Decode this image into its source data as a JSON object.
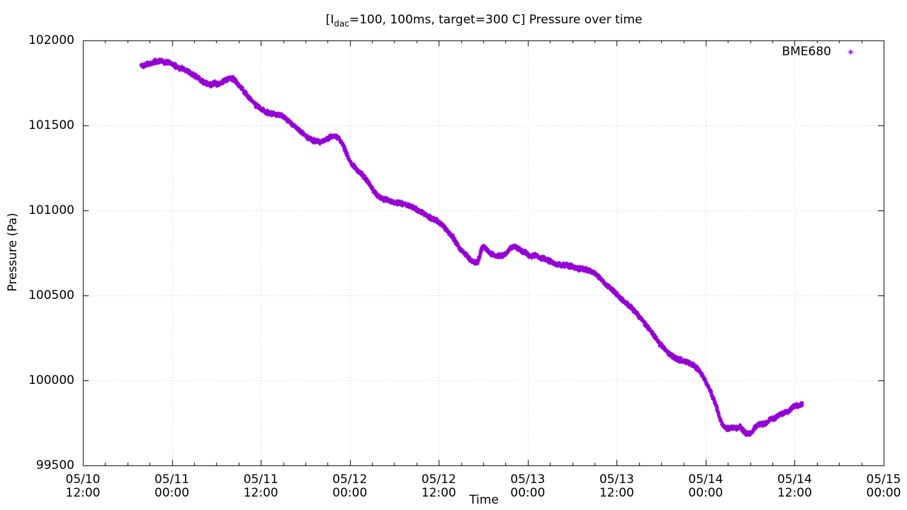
{
  "chart_data": {
    "type": "scatter",
    "title": "[I_dac=100, 100ms, target=300 C] Pressure over time",
    "title_rich": {
      "pre": "[I",
      "sub": "dac",
      "post": "=100, 100ms, target=300 C] Pressure over time"
    },
    "xlabel": "Time",
    "ylabel": "Pressure (Pa)",
    "legend": {
      "position": "top-right",
      "entries": [
        {
          "label": "BME680",
          "color": "#9400d3",
          "marker": "asterisk"
        }
      ]
    },
    "x_axis": {
      "start": "05/10 12:00",
      "end": "05/15 00:00",
      "major_tick_hours": 12,
      "minor_tick_hours": 3,
      "ticks": [
        {
          "line1": "05/10",
          "line2": "12:00"
        },
        {
          "line1": "05/11",
          "line2": "00:00"
        },
        {
          "line1": "05/11",
          "line2": "12:00"
        },
        {
          "line1": "05/12",
          "line2": "00:00"
        },
        {
          "line1": "05/12",
          "line2": "12:00"
        },
        {
          "line1": "05/13",
          "line2": "00:00"
        },
        {
          "line1": "05/13",
          "line2": "12:00"
        },
        {
          "line1": "05/14",
          "line2": "00:00"
        },
        {
          "line1": "05/14",
          "line2": "12:00"
        },
        {
          "line1": "05/15",
          "line2": "00:00"
        }
      ]
    },
    "y_axis": {
      "min": 99500,
      "max": 102000,
      "tick_step": 500,
      "ticks": [
        "99500",
        "100000",
        "100500",
        "101000",
        "101500",
        "102000"
      ]
    },
    "grid": true,
    "series": [
      {
        "name": "BME680",
        "color": "#9400d3",
        "marker": "asterisk",
        "keypoints_hours_pa": [
          [
            7.8,
            101853
          ],
          [
            8.2,
            101858
          ],
          [
            8.7,
            101862
          ],
          [
            9.2,
            101868
          ],
          [
            9.7,
            101878
          ],
          [
            10.2,
            101882
          ],
          [
            10.7,
            101878
          ],
          [
            11.1,
            101872
          ],
          [
            11.5,
            101876
          ],
          [
            12.0,
            101862
          ],
          [
            12.6,
            101845
          ],
          [
            13.2,
            101836
          ],
          [
            13.8,
            101828
          ],
          [
            14.4,
            101812
          ],
          [
            15.0,
            101795
          ],
          [
            15.6,
            101778
          ],
          [
            16.2,
            101757
          ],
          [
            16.8,
            101744
          ],
          [
            17.3,
            101740
          ],
          [
            17.7,
            101752
          ],
          [
            18.1,
            101744
          ],
          [
            18.6,
            101753
          ],
          [
            19.1,
            101767
          ],
          [
            19.7,
            101778
          ],
          [
            20.3,
            101774
          ],
          [
            20.8,
            101748
          ],
          [
            21.3,
            101722
          ],
          [
            21.9,
            101690
          ],
          [
            22.6,
            101655
          ],
          [
            23.3,
            101622
          ],
          [
            24.0,
            101598
          ],
          [
            24.6,
            101580
          ],
          [
            25.3,
            101572
          ],
          [
            26.1,
            101566
          ],
          [
            26.8,
            101558
          ],
          [
            27.5,
            101537
          ],
          [
            28.3,
            101505
          ],
          [
            29.0,
            101478
          ],
          [
            29.7,
            101452
          ],
          [
            30.3,
            101430
          ],
          [
            31.0,
            101413
          ],
          [
            31.8,
            101405
          ],
          [
            32.5,
            101412
          ],
          [
            33.2,
            101430
          ],
          [
            33.8,
            101439
          ],
          [
            34.3,
            101434
          ],
          [
            34.8,
            101408
          ],
          [
            35.3,
            101360
          ],
          [
            35.8,
            101305
          ],
          [
            36.3,
            101270
          ],
          [
            36.9,
            101242
          ],
          [
            37.6,
            101212
          ],
          [
            38.3,
            101178
          ],
          [
            39.0,
            101130
          ],
          [
            39.6,
            101090
          ],
          [
            40.2,
            101072
          ],
          [
            41.0,
            101062
          ],
          [
            42.0,
            101050
          ],
          [
            43.0,
            101042
          ],
          [
            44.0,
            101028
          ],
          [
            44.8,
            101012
          ],
          [
            45.6,
            100992
          ],
          [
            46.5,
            100968
          ],
          [
            47.4,
            100945
          ],
          [
            48.2,
            100925
          ],
          [
            48.9,
            100892
          ],
          [
            49.6,
            100858
          ],
          [
            50.2,
            100820
          ],
          [
            50.8,
            100772
          ],
          [
            51.4,
            100750
          ],
          [
            52.0,
            100725
          ],
          [
            52.4,
            100702
          ],
          [
            53.2,
            100696
          ],
          [
            53.5,
            100735
          ],
          [
            53.8,
            100786
          ],
          [
            54.1,
            100788
          ],
          [
            54.5,
            100765
          ],
          [
            54.9,
            100748
          ],
          [
            55.6,
            100738
          ],
          [
            56.3,
            100731
          ],
          [
            57.0,
            100745
          ],
          [
            57.6,
            100780
          ],
          [
            58.1,
            100795
          ],
          [
            58.6,
            100782
          ],
          [
            59.2,
            100762
          ],
          [
            59.8,
            100750
          ],
          [
            60.3,
            100730
          ],
          [
            60.9,
            100740
          ],
          [
            61.6,
            100724
          ],
          [
            62.4,
            100714
          ],
          [
            63.1,
            100700
          ],
          [
            63.9,
            100685
          ],
          [
            64.8,
            100680
          ],
          [
            65.8,
            100671
          ],
          [
            66.7,
            100662
          ],
          [
            67.5,
            100658
          ],
          [
            68.2,
            100650
          ],
          [
            68.9,
            100635
          ],
          [
            69.6,
            100608
          ],
          [
            70.3,
            100575
          ],
          [
            71.0,
            100548
          ],
          [
            71.6,
            100528
          ],
          [
            72.2,
            100495
          ],
          [
            72.9,
            100468
          ],
          [
            73.7,
            100440
          ],
          [
            74.5,
            100405
          ],
          [
            75.3,
            100360
          ],
          [
            76.1,
            100318
          ],
          [
            76.9,
            100272
          ],
          [
            77.7,
            100222
          ],
          [
            78.5,
            100185
          ],
          [
            79.2,
            100152
          ],
          [
            79.9,
            100128
          ],
          [
            80.7,
            100120
          ],
          [
            81.5,
            100110
          ],
          [
            82.2,
            100095
          ],
          [
            82.9,
            100068
          ],
          [
            83.5,
            100035
          ],
          [
            84.0,
            99988
          ],
          [
            84.7,
            99930
          ],
          [
            85.4,
            99850
          ],
          [
            85.9,
            99775
          ],
          [
            86.3,
            99735
          ],
          [
            86.7,
            99722
          ],
          [
            87.2,
            99718
          ],
          [
            87.7,
            99726
          ],
          [
            88.2,
            99720
          ],
          [
            88.6,
            99730
          ],
          [
            88.9,
            99712
          ],
          [
            89.3,
            99694
          ],
          [
            89.8,
            99686
          ],
          [
            90.2,
            99692
          ],
          [
            90.6,
            99722
          ],
          [
            91.0,
            99742
          ],
          [
            91.9,
            99746
          ],
          [
            92.3,
            99752
          ],
          [
            92.5,
            99772
          ],
          [
            93.2,
            99778
          ],
          [
            93.6,
            99790
          ],
          [
            94.0,
            99800
          ],
          [
            94.6,
            99812
          ],
          [
            95.0,
            99816
          ],
          [
            95.5,
            99838
          ],
          [
            96.0,
            99852
          ],
          [
            96.5,
            99856
          ],
          [
            97.0,
            99862
          ]
        ]
      }
    ]
  },
  "style": {
    "background": "#ffffff",
    "axis_color": "#000000",
    "grid_color": "#bfbfbf",
    "point_color": "#9400d3",
    "text_color": "#000000"
  }
}
